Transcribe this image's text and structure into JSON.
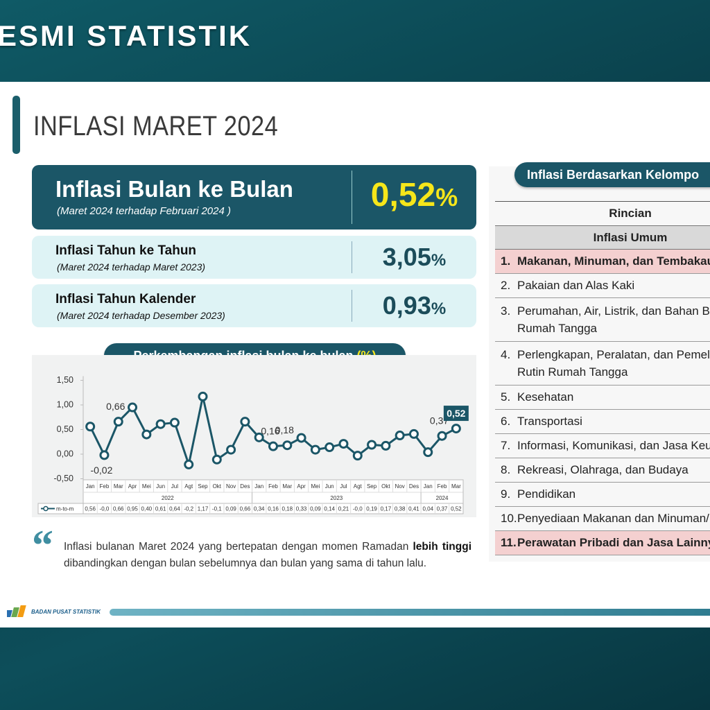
{
  "header": {
    "title": "ESMI STATISTIK"
  },
  "slide": {
    "title": "INFLASI MARET 2024",
    "cards": [
      {
        "title": "Inflasi Bulan ke Bulan",
        "subtitle": "(Maret 2024 terhadap Februari 2024 )",
        "value": "0,52",
        "unit": "%"
      },
      {
        "title": "Inflasi Tahun ke Tahun",
        "subtitle": "(Maret 2024 terhadap Maret 2023)",
        "value": "3,05",
        "unit": "%"
      },
      {
        "title": "Inflasi Tahun Kalender",
        "subtitle": "(Maret 2024 terhadap Desember 2023)",
        "value": "0,93",
        "unit": "%"
      }
    ],
    "chart_heading": {
      "text": "Perkembangan inflasi bulan ke bulan",
      "unit": "(%)"
    },
    "quote": [
      {
        "text": "Inflasi bulanan Maret 2024 yang bertepatan dengan momen Ramadan ",
        "bold": false
      },
      {
        "text": "lebih tinggi",
        "bold": true
      },
      {
        "text": " dibandingkan dengan bulan sebelumnya dan bulan yang sama di tahun lalu.",
        "bold": false
      }
    ],
    "footer": {
      "text": "BADAN PUSAT STATISTIK"
    },
    "table": {
      "title": "Inflasi Berdasarkan Kelompo",
      "header": "Rincian",
      "subheader": "Inflasi Umum",
      "rows": [
        {
          "number": "1.",
          "lines": [
            "Makanan, Minuman, dan Tembakau"
          ],
          "highlight": true
        },
        {
          "number": "2.",
          "lines": [
            "Pakaian dan Alas Kaki"
          ],
          "highlight": false
        },
        {
          "number": "3.",
          "lines": [
            "Perumahan, Air, Listrik, dan Bahan Ba",
            "Rumah Tangga"
          ],
          "highlight": false
        },
        {
          "number": "4.",
          "lines": [
            "Perlengkapan, Peralatan, dan Pemelih",
            "Rutin Rumah Tangga"
          ],
          "highlight": false
        },
        {
          "number": "5.",
          "lines": [
            "Kesehatan"
          ],
          "highlight": false
        },
        {
          "number": "6.",
          "lines": [
            "Transportasi"
          ],
          "highlight": false
        },
        {
          "number": "7.",
          "lines": [
            "Informasi, Komunikasi, dan Jasa Keua"
          ],
          "highlight": false
        },
        {
          "number": "8.",
          "lines": [
            "Rekreasi, Olahraga, dan Budaya"
          ],
          "highlight": false
        },
        {
          "number": "9.",
          "lines": [
            "Pendidikan"
          ],
          "highlight": false
        },
        {
          "number": "10.",
          "lines": [
            "Penyediaan Makanan dan Minuman/R"
          ],
          "highlight": false
        },
        {
          "number": "11.",
          "lines": [
            "Perawatan Pribadi dan Jasa Lainny"
          ],
          "highlight": true
        }
      ]
    }
  },
  "chart_data": {
    "type": "line",
    "categories": [
      "Jan",
      "Feb",
      "Mar",
      "Apr",
      "Mei",
      "Jun",
      "Jul",
      "Agt",
      "Sep",
      "Okt",
      "Nov",
      "Des",
      "Jan",
      "Feb",
      "Mar",
      "Apr",
      "Mei",
      "Jun",
      "Jul",
      "Agt",
      "Sep",
      "Okt",
      "Nov",
      "Des",
      "Jan",
      "Feb",
      "Mar"
    ],
    "category_groups": [
      "2022",
      "2023",
      "2024"
    ],
    "series": [
      {
        "name": "m-to-m",
        "color": "#1b5667",
        "values": [
          0.56,
          -0.02,
          0.66,
          0.95,
          0.4,
          0.61,
          0.64,
          -0.21,
          1.17,
          -0.11,
          0.09,
          0.66,
          0.34,
          0.16,
          0.18,
          0.33,
          0.09,
          0.14,
          0.21,
          -0.03,
          0.19,
          0.17,
          0.38,
          0.41,
          0.04,
          0.37,
          0.52
        ],
        "value_labels": [
          "0,56",
          "-0,0",
          "0,66",
          "0,95",
          "0,40",
          "0,61",
          "0,64",
          "-0,2",
          "1,17",
          "-0,1",
          "0,09",
          "0,66",
          "0,34",
          "0,16",
          "0,18",
          "0,33",
          "0,09",
          "0,14",
          "0,21",
          "-0,0",
          "0,19",
          "0,17",
          "0,38",
          "0,41",
          "0,04",
          "0,37",
          "0,52"
        ]
      }
    ],
    "annotations": [
      {
        "value": -0.02,
        "label": "-0,02",
        "position": "below",
        "boxed": false
      },
      {
        "value": 0.66,
        "label": "0,66",
        "position": "above",
        "boxed": false
      },
      {
        "value": 0.16,
        "label": "0,16",
        "position": "above",
        "boxed": false
      },
      {
        "value": 0.18,
        "label": "0,18",
        "position": "above",
        "boxed": false
      },
      {
        "value": 0.37,
        "label": "0,37",
        "position": "above",
        "boxed": false
      },
      {
        "value": 0.52,
        "label": "0,52",
        "position": "above",
        "boxed": true
      }
    ],
    "ylim": [
      -0.5,
      1.5
    ],
    "yticks": [
      {
        "value": -0.5,
        "label": "-0,50"
      },
      {
        "value": 0,
        "label": "0,00"
      },
      {
        "value": 0.5,
        "label": "0,50"
      },
      {
        "value": 1,
        "label": "1,00"
      },
      {
        "value": 1.5,
        "label": "1,50"
      }
    ],
    "grid": false
  }
}
